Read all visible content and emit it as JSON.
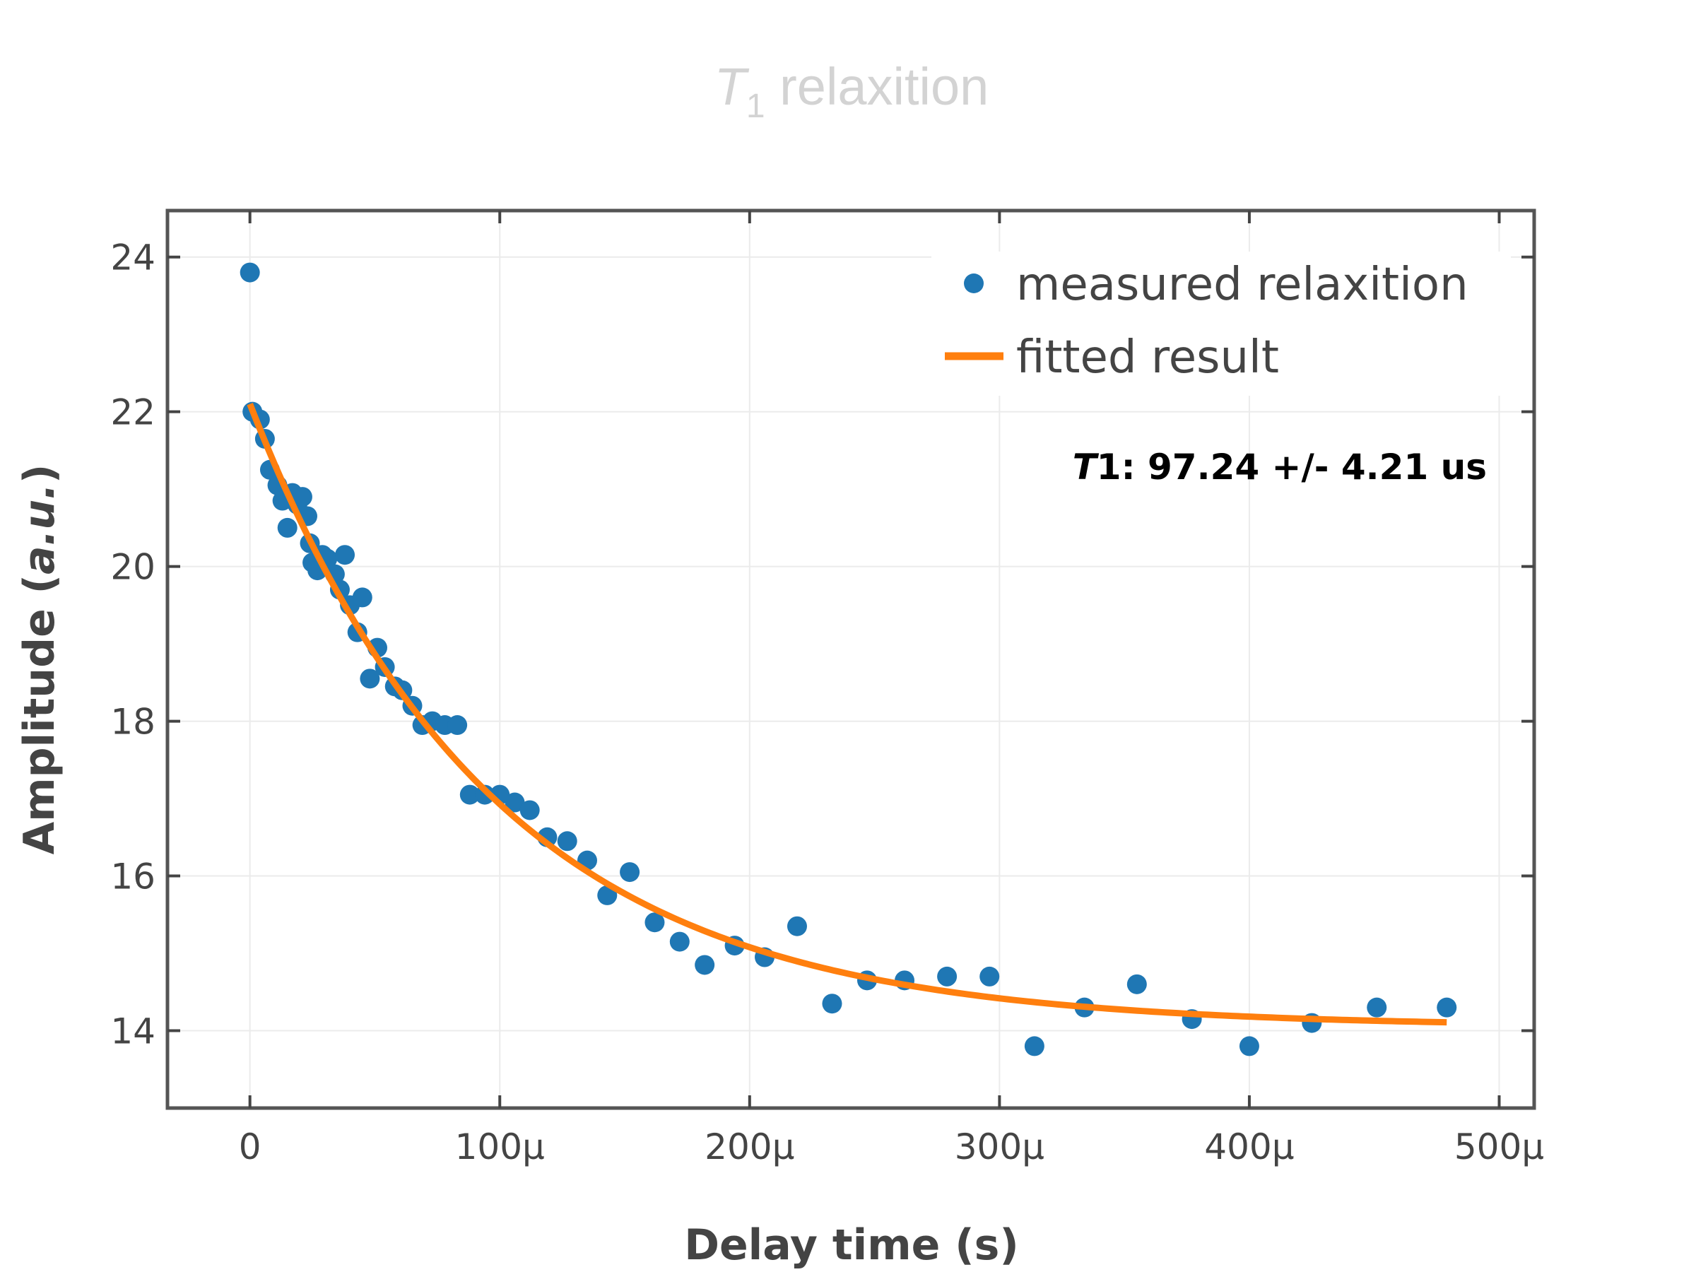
{
  "chart_data": {
    "type": "scatter",
    "title": {
      "symbol": "T",
      "subscript": "1",
      "text": " relaxition"
    },
    "xlabel": "Delay time (s)",
    "ylabel": {
      "main": "Amplitude (",
      "italic": "a.u.",
      "close": ")"
    },
    "xlim": [
      -3.3e-05,
      0.000514
    ],
    "ylim": [
      13.0,
      24.6
    ],
    "xticks": [
      {
        "value": 0,
        "label": "0"
      },
      {
        "value": 0.0001,
        "label": "100μ"
      },
      {
        "value": 0.0002,
        "label": "200μ"
      },
      {
        "value": 0.0003,
        "label": "300μ"
      },
      {
        "value": 0.0004,
        "label": "400μ"
      },
      {
        "value": 0.0005,
        "label": "500μ"
      }
    ],
    "yticks": [
      {
        "value": 14,
        "label": "14"
      },
      {
        "value": 16,
        "label": "16"
      },
      {
        "value": 18,
        "label": "18"
      },
      {
        "value": 20,
        "label": "20"
      },
      {
        "value": 22,
        "label": "22"
      },
      {
        "value": 24,
        "label": "24"
      }
    ],
    "grid": true,
    "legend_position": "top-right",
    "series": [
      {
        "name": "measured relaxition",
        "kind": "scatter",
        "color": "#1f77b4",
        "x": [
          0,
          1e-06,
          4e-06,
          6e-06,
          8e-06,
          1.1e-05,
          1.3e-05,
          1.5e-05,
          1.7e-05,
          1.9e-05,
          2.1e-05,
          2.3e-05,
          2.4e-05,
          2.5e-05,
          2.7e-05,
          2.9e-05,
          3.1e-05,
          3.4e-05,
          3.6e-05,
          3.8e-05,
          4e-05,
          4.3e-05,
          4.5e-05,
          4.8e-05,
          5.1e-05,
          5.4e-05,
          5.8e-05,
          6.1e-05,
          6.5e-05,
          6.9e-05,
          7.3e-05,
          7.8e-05,
          8.3e-05,
          8.8e-05,
          9.4e-05,
          0.0001,
          0.000106,
          0.000112,
          0.000119,
          0.000127,
          0.000135,
          0.000143,
          0.000152,
          0.000162,
          0.000172,
          0.000182,
          0.000194,
          0.000206,
          0.000219,
          0.000233,
          0.000247,
          0.000262,
          0.000279,
          0.000296,
          0.000314,
          0.000334,
          0.000355,
          0.000377,
          0.0004,
          0.000425,
          0.000451,
          0.000479
        ],
        "y": [
          23.8,
          22.0,
          21.9,
          21.65,
          21.25,
          21.05,
          20.85,
          20.5,
          20.95,
          20.8,
          20.9,
          20.65,
          20.3,
          20.05,
          19.95,
          20.15,
          20.1,
          19.9,
          19.7,
          20.15,
          19.5,
          19.15,
          19.6,
          18.55,
          18.95,
          18.7,
          18.45,
          18.4,
          18.2,
          17.95,
          18.0,
          17.95,
          17.95,
          17.05,
          17.05,
          17.05,
          16.95,
          16.85,
          16.5,
          16.45,
          16.2,
          15.75,
          16.05,
          15.4,
          15.15,
          14.85,
          15.1,
          14.95,
          15.35,
          14.35,
          14.65,
          14.65,
          14.7,
          14.7,
          13.8,
          14.3,
          14.6,
          14.15,
          13.8,
          14.1,
          14.3,
          14.3
        ]
      },
      {
        "name": "fitted result",
        "kind": "line",
        "color": "#ff7f0e",
        "fit": {
          "model": "exponential_decay",
          "A": 8.05,
          "tau": 9.724e-05,
          "C": 14.05
        },
        "x_range": [
          0,
          0.000479
        ]
      }
    ],
    "annotation": {
      "symbol": "T",
      "rest": "1:  97.24 +/- 4.21 us"
    }
  }
}
